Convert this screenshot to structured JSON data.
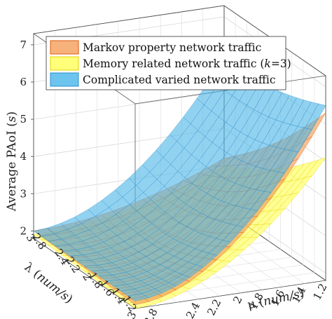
{
  "chart_data": {
    "type": "surface3d",
    "title": "",
    "zlabel": {
      "prefix": "Average PAoI (",
      "var": "s",
      "suffix": ")"
    },
    "xlabel": {
      "prefix": "λ (",
      "var": "num/s",
      "suffix": ")"
    },
    "ylabel": {
      "prefix": "μ (",
      "var": "num/s",
      "suffix": ")"
    },
    "z_ticks": [
      "2",
      "3",
      "4",
      "5",
      "6",
      "7"
    ],
    "lambda_ticks": [
      "3",
      "2.8",
      "2.4",
      "2.2",
      "2",
      "1.8",
      "1.6",
      "1.4",
      "1.2"
    ],
    "mu_ticks": [
      "3",
      "2.8",
      "2.4",
      "2.2",
      "2",
      "1.8",
      "1.6",
      "1.4",
      "1.2"
    ],
    "zlim": [
      1.8,
      7.3
    ],
    "lambda_range": [
      1.2,
      3
    ],
    "mu_range": [
      1.2,
      3
    ],
    "grid": true,
    "legend_position": "top",
    "series": [
      {
        "name": "Markov property network traffic",
        "color": "#f4a460",
        "edge": "#e05a10",
        "corners": {
          "l_hi_mu_hi": 2.0,
          "l_hi_mu_lo": 3.2,
          "l_lo_mu_hi": 1.9,
          "l_lo_mu_lo": 6.3
        }
      },
      {
        "name_prefix": "Memory related network traffic (",
        "name_var": "k",
        "name_suffix": "=3)",
        "color": "#ffff66",
        "edge": "#e6d200",
        "corners": {
          "l_hi_mu_hi": 1.9,
          "l_hi_mu_lo": 3.0,
          "l_lo_mu_hi": 1.8,
          "l_lo_mu_lo": 5.1
        }
      },
      {
        "name": "Complicated varied network traffic",
        "color": "#4fb6e8",
        "edge": "#2f8fc8",
        "corners": {
          "l_hi_mu_hi": 2.0,
          "l_hi_mu_lo": 5.9,
          "l_lo_mu_hi": 2.0,
          "l_lo_mu_lo": 6.5
        }
      }
    ]
  }
}
